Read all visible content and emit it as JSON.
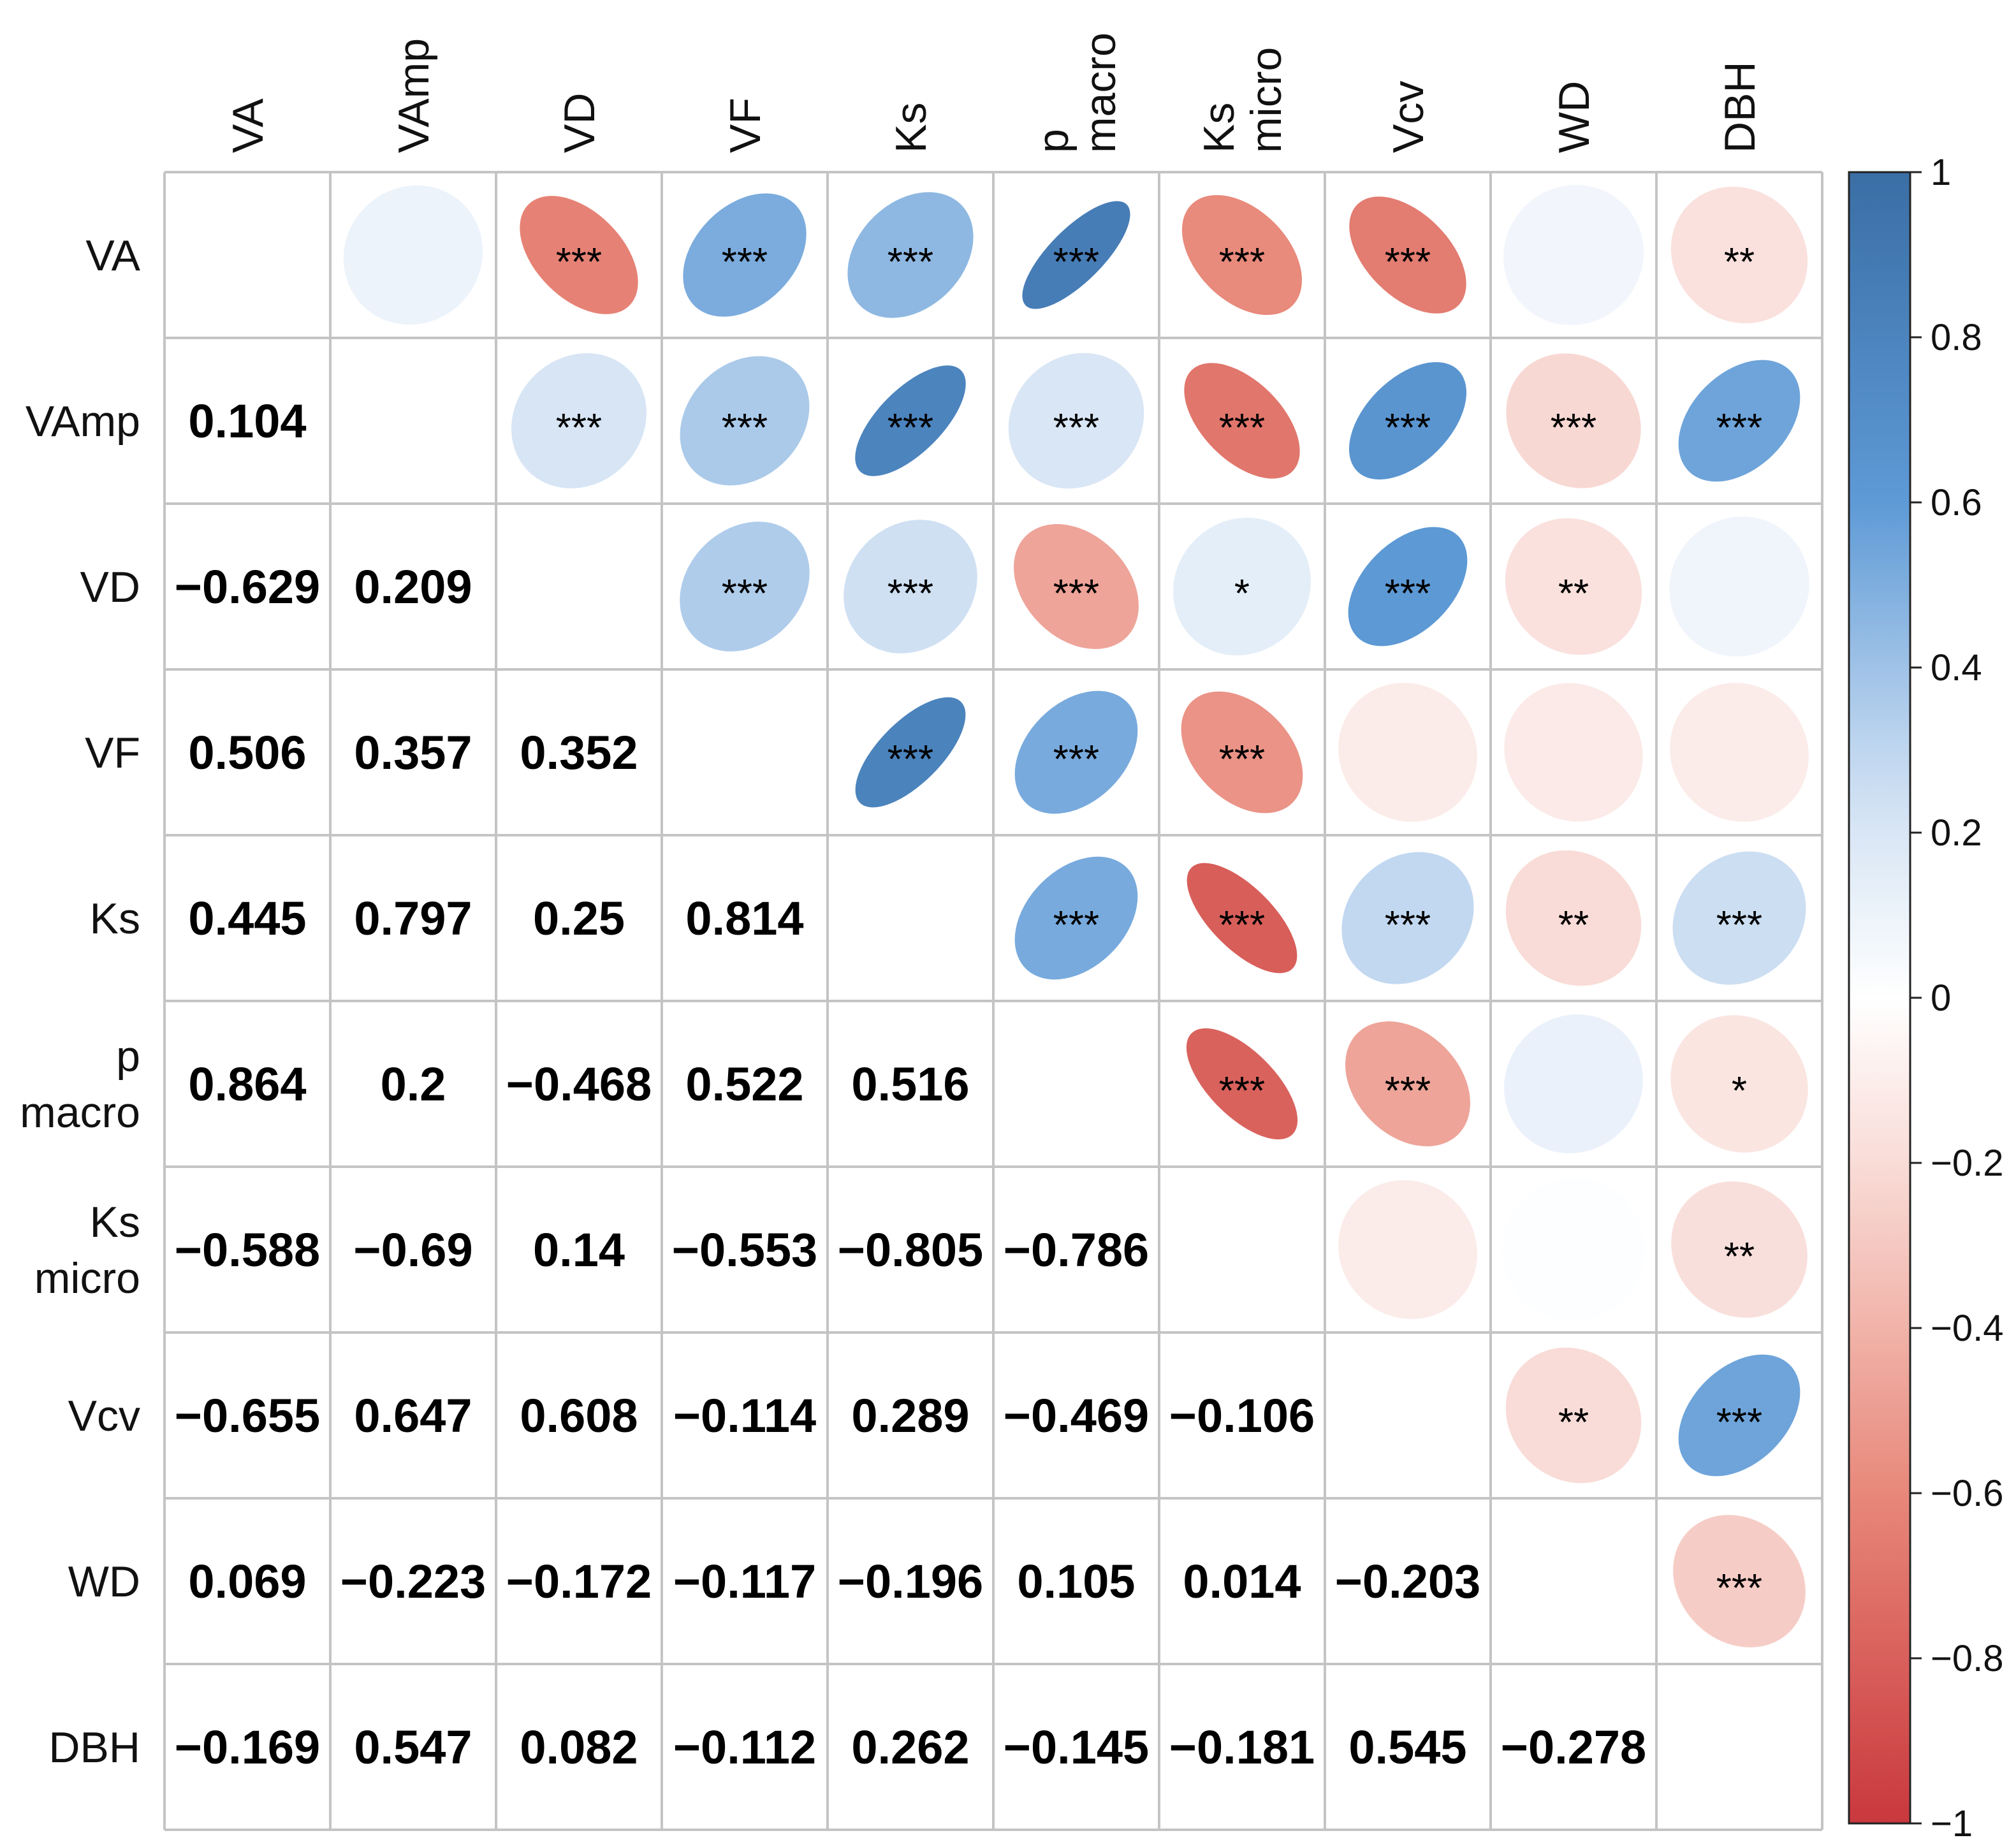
{
  "chart_data": {
    "type": "heatmap",
    "title": "",
    "variables": [
      [
        "VA"
      ],
      [
        "VAmp"
      ],
      [
        "VD"
      ],
      [
        "VF"
      ],
      [
        "Ks"
      ],
      [
        "p",
        "macro"
      ],
      [
        "Ks",
        "micro"
      ],
      [
        "Vcv"
      ],
      [
        "WD"
      ],
      [
        "DBH"
      ]
    ],
    "lower_values": [
      [
        null,
        null,
        null,
        null,
        null,
        null,
        null,
        null,
        null,
        null
      ],
      [
        "0.104",
        null,
        null,
        null,
        null,
        null,
        null,
        null,
        null,
        null
      ],
      [
        "−0.629",
        "0.209",
        null,
        null,
        null,
        null,
        null,
        null,
        null,
        null
      ],
      [
        "0.506",
        "0.357",
        "0.352",
        null,
        null,
        null,
        null,
        null,
        null,
        null
      ],
      [
        "0.445",
        "0.797",
        "0.25",
        "0.814",
        null,
        null,
        null,
        null,
        null,
        null
      ],
      [
        "0.864",
        "0.2",
        "−0.468",
        "0.522",
        "0.516",
        null,
        null,
        null,
        null,
        null
      ],
      [
        "−0.588",
        "−0.69",
        "0.14",
        "−0.553",
        "−0.805",
        "−0.786",
        null,
        null,
        null,
        null
      ],
      [
        "−0.655",
        "0.647",
        "0.608",
        "−0.114",
        "0.289",
        "−0.469",
        "−0.106",
        null,
        null,
        null
      ],
      [
        "0.069",
        "−0.223",
        "−0.172",
        "−0.117",
        "−0.196",
        "0.105",
        "0.014",
        "−0.203",
        null,
        null
      ],
      [
        "−0.169",
        "0.547",
        "0.082",
        "−0.112",
        "0.262",
        "−0.145",
        "−0.181",
        "0.545",
        "−0.278",
        null
      ]
    ],
    "upper_signif": [
      [
        null,
        "",
        "***",
        "***",
        "***",
        "***",
        "***",
        "***",
        "",
        "**"
      ],
      [
        null,
        null,
        "***",
        "***",
        "***",
        "***",
        "***",
        "***",
        "***",
        "***"
      ],
      [
        null,
        null,
        null,
        "***",
        "***",
        "***",
        "*",
        "***",
        "**",
        ""
      ],
      [
        null,
        null,
        null,
        null,
        "***",
        "***",
        "***",
        "",
        "",
        ""
      ],
      [
        null,
        null,
        null,
        null,
        null,
        "***",
        "***",
        "***",
        "**",
        "***"
      ],
      [
        null,
        null,
        null,
        null,
        null,
        null,
        "***",
        "***",
        "",
        "*"
      ],
      [
        null,
        null,
        null,
        null,
        null,
        null,
        null,
        "",
        "",
        "**"
      ],
      [
        null,
        null,
        null,
        null,
        null,
        null,
        null,
        null,
        "**",
        "***"
      ],
      [
        null,
        null,
        null,
        null,
        null,
        null,
        null,
        null,
        null,
        "***"
      ],
      [
        null,
        null,
        null,
        null,
        null,
        null,
        null,
        null,
        null,
        null
      ]
    ],
    "upper_ellipse_values": [
      [
        null,
        0.1,
        -0.63,
        0.51,
        0.45,
        0.86,
        -0.59,
        -0.66,
        0.07,
        -0.17
      ],
      [
        null,
        null,
        0.21,
        0.36,
        0.8,
        0.2,
        -0.69,
        0.65,
        -0.22,
        0.55
      ],
      [
        null,
        null,
        null,
        0.35,
        0.25,
        -0.47,
        0.14,
        0.61,
        -0.17,
        0.08
      ],
      [
        null,
        null,
        null,
        null,
        0.81,
        0.52,
        -0.55,
        -0.11,
        -0.12,
        -0.11
      ],
      [
        null,
        null,
        null,
        null,
        null,
        0.52,
        -0.81,
        0.29,
        -0.2,
        0.26
      ],
      [
        null,
        null,
        null,
        null,
        null,
        null,
        -0.79,
        -0.47,
        0.11,
        -0.15
      ],
      [
        null,
        null,
        null,
        null,
        null,
        null,
        null,
        -0.11,
        0.01,
        -0.18
      ],
      [
        null,
        null,
        null,
        null,
        null,
        null,
        null,
        null,
        -0.2,
        0.55
      ],
      [
        null,
        null,
        null,
        null,
        null,
        null,
        null,
        null,
        null,
        -0.28
      ],
      [
        null,
        null,
        null,
        null,
        null,
        null,
        null,
        null,
        null,
        null
      ]
    ],
    "colorbar": {
      "range": [
        -1,
        1
      ],
      "ticks": [
        1,
        0.8,
        0.6,
        0.4,
        0.2,
        0,
        -0.2,
        -0.4,
        -0.6,
        -0.8,
        -1
      ],
      "tick_labels": [
        "1",
        "0.8",
        "0.6",
        "0.4",
        "0.2",
        "0",
        "−0.2",
        "−0.4",
        "−0.6",
        "−0.8",
        "−1"
      ],
      "colors": {
        "pos_end": "#3a6ea5",
        "pos_mid": "#5e9ad6",
        "pos_light": "#cfe0f3",
        "neutral": "#ffffff",
        "neg_light": "#f7d3cd",
        "neg_mid": "#e8887a",
        "neg_end": "#c9383d"
      }
    },
    "grid_color": "#c4c4c4"
  }
}
